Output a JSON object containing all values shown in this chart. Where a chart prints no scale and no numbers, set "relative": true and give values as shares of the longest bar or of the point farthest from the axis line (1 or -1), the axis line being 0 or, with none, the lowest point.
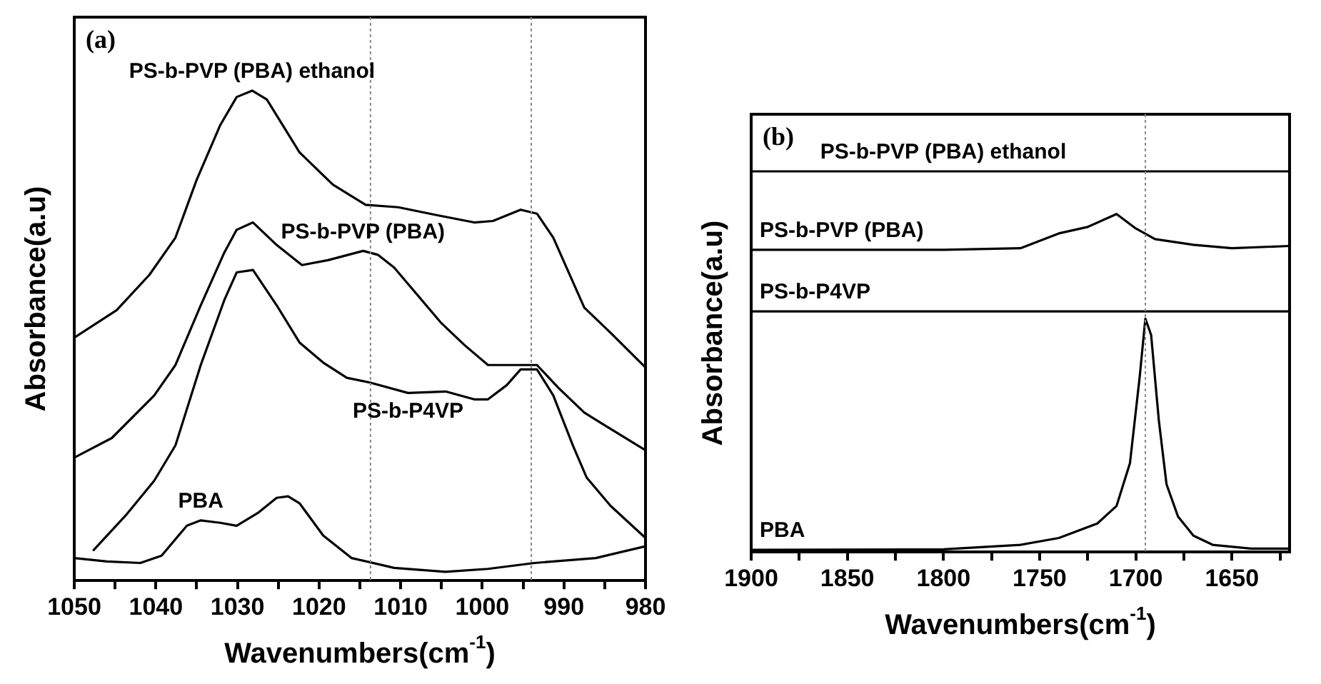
{
  "chart_data": [
    {
      "type": "line",
      "title": "(a)",
      "xlabel": "Wavenumbers(cm$^{-1}$)",
      "ylabel": "Absorbance(a.u)",
      "relative": true,
      "xlim": [
        1050,
        980
      ],
      "xticks": [
        1050,
        {
          "value": 1045,
          "label": null
        },
        1040,
        {
          "value": 1035,
          "label": null
        },
        1030,
        {
          "value": 1025,
          "label": null
        },
        1020,
        {
          "value": 1015,
          "label": null
        },
        1010,
        {
          "value": 1005,
          "label": null
        },
        1000,
        {
          "value": 995,
          "label": null
        },
        990,
        {
          "value": 985,
          "label": null
        },
        980
      ],
      "ref_lines": [
        {
          "axis": "x",
          "value": 1013.7,
          "color": "#888888",
          "line_style": "dotted"
        },
        {
          "axis": "x",
          "value": 994,
          "color": "#888888",
          "line_style": "dotted"
        }
      ],
      "series": [
        {
          "name": "PS-b-PVP (PBA) ethanol",
          "color": "#000000",
          "x": [
            1050,
            1044.8,
            1040.8,
            1037.6,
            1035,
            1032.1,
            1030.1,
            1028.2,
            1026.4,
            1022.4,
            1018.3,
            1014.3,
            1010.3,
            1005.6,
            1001,
            998.7,
            995.3,
            993.3,
            991.3,
            987.5,
            984.3,
            980
          ],
          "values": [
            0.496,
            0.552,
            0.624,
            0.7,
            0.818,
            0.93,
            0.987,
            1,
            0.982,
            0.874,
            0.808,
            0.767,
            0.762,
            0.746,
            0.731,
            0.734,
            0.757,
            0.749,
            0.7,
            0.557,
            0.506,
            0.435
          ]
        },
        {
          "name": "PS-b-PVP (PBA)",
          "color": "#000000",
          "x": [
            1050,
            1045.4,
            1040.2,
            1037.6,
            1034.5,
            1031.6,
            1030.1,
            1028.1,
            1025.2,
            1022.1,
            1018.9,
            1014.6,
            1012.8,
            1010.8,
            1005.1,
            1002.2,
            999.3,
            993.3,
            990.7,
            987.5,
            985.5,
            980
          ],
          "values": [
            0.251,
            0.291,
            0.378,
            0.44,
            0.562,
            0.67,
            0.716,
            0.731,
            0.685,
            0.644,
            0.654,
            0.673,
            0.665,
            0.639,
            0.527,
            0.481,
            0.44,
            0.44,
            0.394,
            0.343,
            0.322,
            0.266
          ]
        },
        {
          "name": "PS-b-P4VP",
          "color": "#000000",
          "x": [
            1047.7,
            1043.7,
            1040.2,
            1037.6,
            1034.5,
            1031.6,
            1030.1,
            1028.1,
            1025.2,
            1022.4,
            1019.5,
            1016.6,
            1013.7,
            1009.1,
            1004.5,
            1001,
            999.3,
            997,
            995.3,
            993.3,
            991.3,
            988.9,
            987.2,
            984.3,
            980
          ],
          "values": [
            0.061,
            0.133,
            0.204,
            0.276,
            0.44,
            0.573,
            0.629,
            0.634,
            0.562,
            0.486,
            0.445,
            0.414,
            0.404,
            0.383,
            0.386,
            0.37,
            0.37,
            0.399,
            0.431,
            0.431,
            0.378,
            0.276,
            0.21,
            0.153,
            0.087
          ]
        },
        {
          "name": "PBA",
          "color": "#000000",
          "x": [
            1050,
            1046,
            1041.9,
            1039.3,
            1036.2,
            1034.5,
            1032.1,
            1030.1,
            1027.5,
            1025.2,
            1023.8,
            1022.4,
            1019.5,
            1016,
            1010.8,
            1004.5,
            999.3,
            993.6,
            986.1,
            980
          ],
          "values": [
            0.046,
            0.039,
            0.036,
            0.051,
            0.112,
            0.123,
            0.118,
            0.112,
            0.138,
            0.169,
            0.172,
            0.158,
            0.092,
            0.046,
            0.026,
            0.018,
            0.024,
            0.036,
            0.046,
            0.07
          ]
        }
      ]
    },
    {
      "type": "line",
      "title": "(b)",
      "xlabel": "Wavenumbers(cm$^{-1}$)",
      "ylabel": "Absorbance(a.u)",
      "relative": true,
      "xlim": [
        1900,
        1620
      ],
      "xticks": [
        1900,
        {
          "value": 1875,
          "label": null
        },
        1850,
        {
          "value": 1825,
          "label": null
        },
        1800,
        {
          "value": 1775,
          "label": null
        },
        1750,
        {
          "value": 1725,
          "label": null
        },
        1700,
        {
          "value": 1675,
          "label": null
        },
        1650,
        {
          "value": 1625,
          "label": null
        }
      ],
      "ref_lines": [
        {
          "axis": "x",
          "value": 1695,
          "color": "#888888",
          "line_style": "dotted"
        }
      ],
      "series": [
        {
          "name": "PS-b-PVP (PBA) ethanol",
          "color": "#000000",
          "x": [
            1900,
            1800,
            1700,
            1620
          ],
          "values": [
            1,
            1,
            1,
            1
          ]
        },
        {
          "name": "PS-b-PVP (PBA)",
          "color": "#000000",
          "x": [
            1900,
            1800,
            1760,
            1740,
            1725,
            1710,
            1700,
            1690,
            1670,
            1650,
            1620
          ],
          "values": [
            0.794,
            0.794,
            0.798,
            0.837,
            0.854,
            0.888,
            0.85,
            0.822,
            0.807,
            0.798,
            0.804
          ]
        },
        {
          "name": "PS-b-P4VP",
          "color": "#000000",
          "x": [
            1900,
            1800,
            1700,
            1620
          ],
          "values": [
            0.632,
            0.632,
            0.632,
            0.632
          ]
        },
        {
          "name": "PBA",
          "color": "#000000",
          "x": [
            1900,
            1800,
            1760,
            1740,
            1720,
            1710,
            1703,
            1698,
            1695,
            1692,
            1688,
            1684,
            1678,
            1670,
            1660,
            1640,
            1620
          ],
          "values": [
            0.006,
            0.007,
            0.019,
            0.037,
            0.075,
            0.121,
            0.234,
            0.458,
            0.613,
            0.57,
            0.346,
            0.178,
            0.093,
            0.043,
            0.019,
            0.009,
            0.009
          ]
        }
      ]
    }
  ]
}
